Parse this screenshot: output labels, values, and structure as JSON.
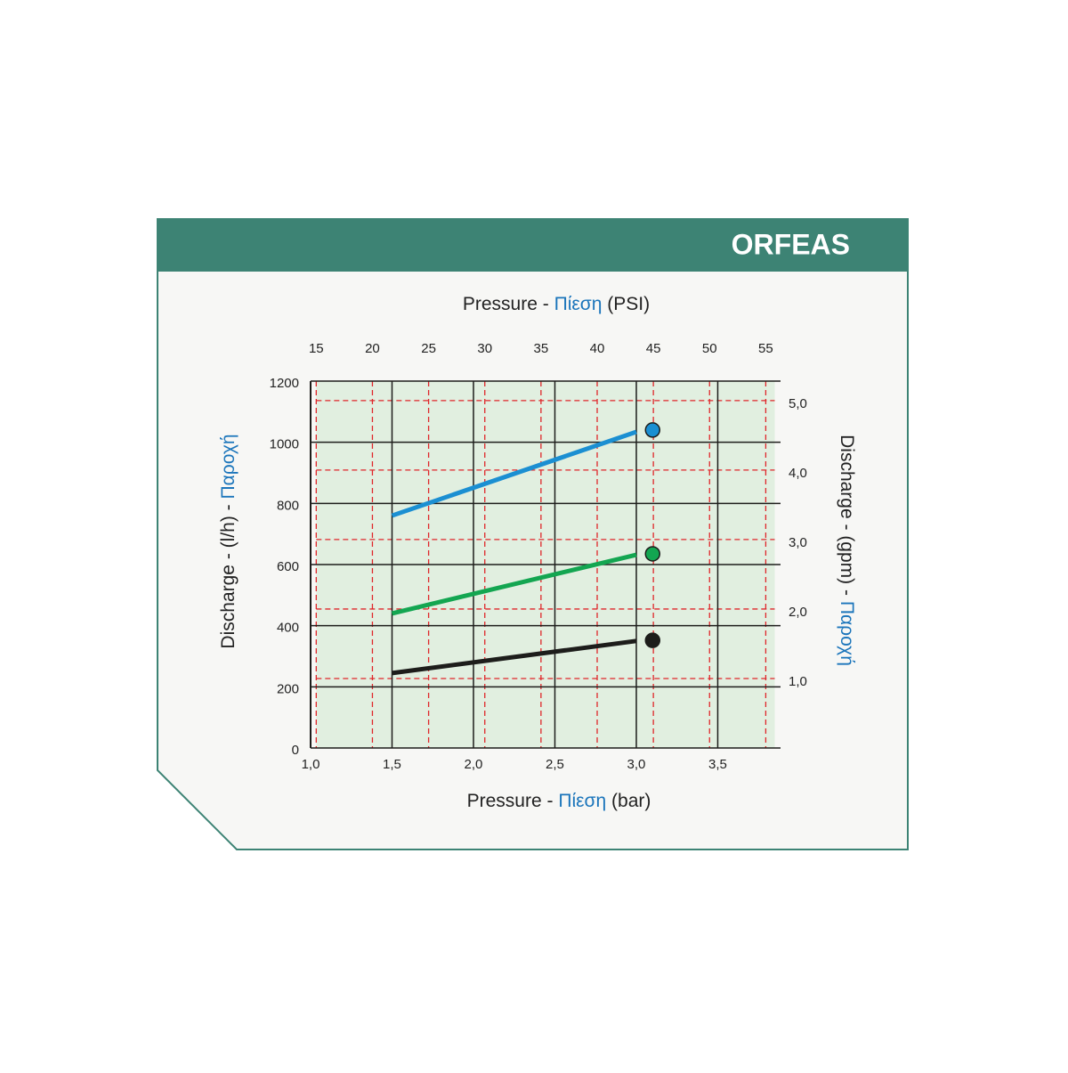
{
  "chart_data": {
    "type": "line",
    "title": "ORFEAS",
    "xlabel": {
      "prefix": "Pressure -",
      "accent": "Πίεση",
      "suffix": "(bar)"
    },
    "x2label": {
      "prefix": "Pressure -",
      "accent": "Πίεση",
      "suffix": "(PSI)"
    },
    "ylabel": {
      "prefix": "Discharge - (l/h) -",
      "accent": "Παροχή"
    },
    "y2label": {
      "prefix": "Discharge - (gpm) -",
      "accent": "Παροχή"
    },
    "xlim": [
      1.0,
      3.85
    ],
    "xticks": [
      {
        "value": 1.0,
        "label": "1,0"
      },
      {
        "value": 1.5,
        "label": "1,5"
      },
      {
        "value": 2.0,
        "label": "2,0"
      },
      {
        "value": 2.5,
        "label": "2,5"
      },
      {
        "value": 3.0,
        "label": "3,0"
      },
      {
        "value": 3.5,
        "label": "3,5"
      }
    ],
    "x2lim": [
      14.5,
      55.8
    ],
    "x2ticks": [
      15,
      20,
      25,
      30,
      35,
      40,
      45,
      50,
      55
    ],
    "ylim": [
      0,
      1200
    ],
    "yticks": [
      0,
      200,
      400,
      600,
      800,
      1000,
      1200
    ],
    "y2lim": [
      0,
      5.28
    ],
    "y2ticks": [
      {
        "value": 1.0,
        "label": "1,0"
      },
      {
        "value": 2.0,
        "label": "2,0"
      },
      {
        "value": 3.0,
        "label": "3,0"
      },
      {
        "value": 4.0,
        "label": "4,0"
      },
      {
        "value": 5.0,
        "label": "5,0"
      }
    ],
    "grid": true,
    "series": [
      {
        "color": "#1b8fd2",
        "x": [
          1.5,
          3.0
        ],
        "values": [
          760,
          1034
        ],
        "marker": {
          "x": 3.1,
          "value": 1040
        }
      },
      {
        "color": "#13a651",
        "x": [
          1.5,
          3.0
        ],
        "values": [
          440,
          632
        ],
        "marker": {
          "x": 3.1,
          "value": 635
        }
      },
      {
        "color": "#1d1d1b",
        "x": [
          1.5,
          3.0
        ],
        "values": [
          245,
          350
        ],
        "marker": {
          "x": 3.1,
          "value": 352
        }
      }
    ]
  }
}
